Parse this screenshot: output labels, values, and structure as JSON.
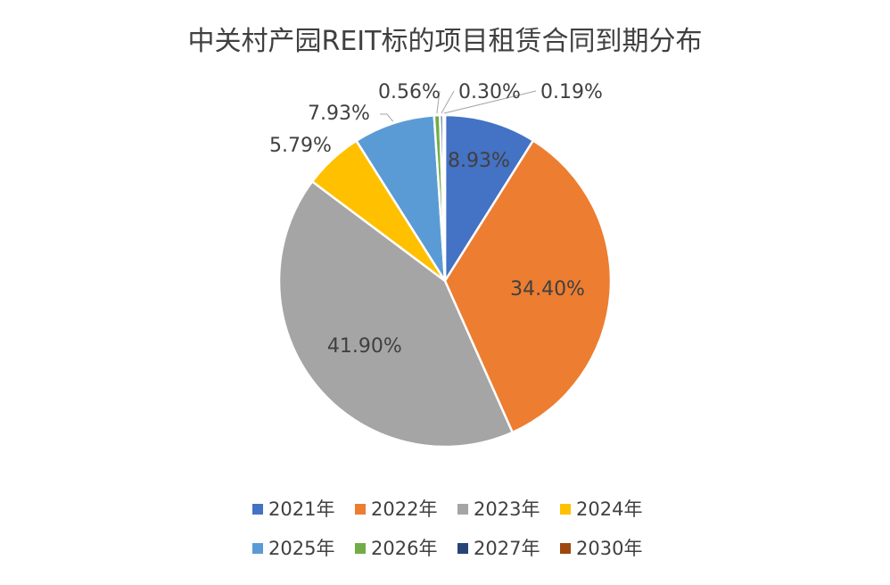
{
  "chart_data": {
    "type": "pie",
    "title": "中关村产园REIT标的项目租赁合同到期分布",
    "categories": [
      "2021年",
      "2022年",
      "2023年",
      "2024年",
      "2025年",
      "2026年",
      "2027年",
      "2030年"
    ],
    "values": [
      8.93,
      34.4,
      41.9,
      5.79,
      7.93,
      0.56,
      0.3,
      0.19
    ],
    "labels": [
      "8.93%",
      "34.40%",
      "41.90%",
      "5.79%",
      "7.93%",
      "0.56%",
      "0.30%",
      "0.19%"
    ],
    "colors": [
      "#4472C4",
      "#ED7D31",
      "#A5A5A5",
      "#FFC000",
      "#5B9BD5",
      "#70AD47",
      "#264478",
      "#9E480E"
    ],
    "legend_position": "bottom"
  }
}
